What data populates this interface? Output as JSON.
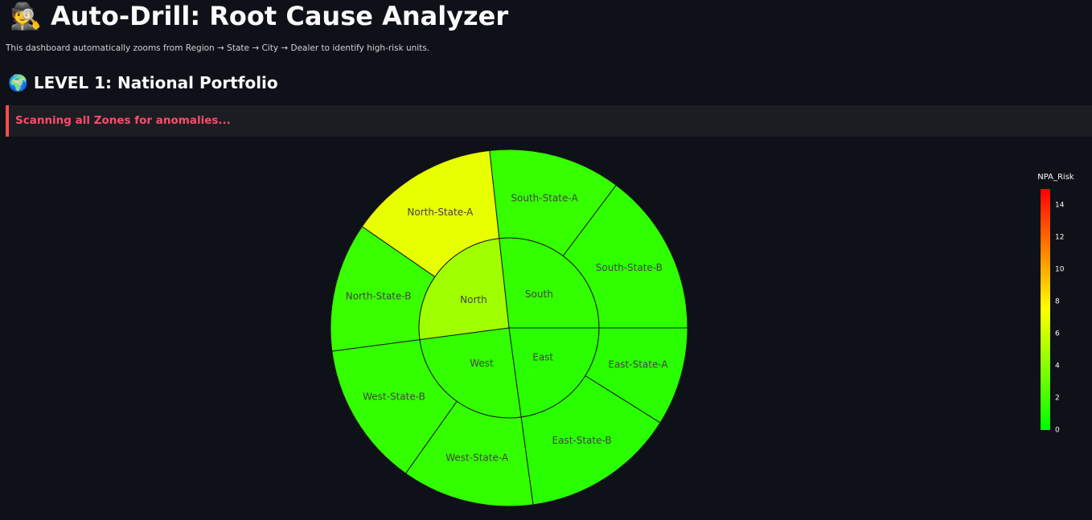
{
  "header": {
    "title": "🕵️ Auto-Drill: Root Cause Analyzer",
    "subtitle": "This dashboard automatically zooms from Region → State → City → Dealer to identify high-risk units."
  },
  "section": {
    "title": "🌍 LEVEL 1: National Portfolio",
    "alert": "Scanning all Zones for anomalies..."
  },
  "chart_data": {
    "type": "sunburst",
    "labels": [
      "South",
      "North",
      "West",
      "East",
      "South-State-B",
      "South-State-A",
      "North-State-A",
      "North-State-B",
      "West-State-B",
      "West-State-A",
      "East-State-B",
      "East-State-A"
    ],
    "parents": [
      null,
      null,
      null,
      null,
      "South",
      "South",
      "North",
      "North",
      "West",
      "West",
      "East",
      "East"
    ],
    "values": [
      96,
      91,
      90,
      82,
      53,
      43,
      49,
      42,
      47,
      43,
      50,
      32
    ],
    "risk": [
      1.5,
      4.7,
      1.5,
      1.2,
      1.4,
      1.6,
      6.8,
      1.7,
      1.5,
      1.5,
      1.2,
      1.2
    ],
    "colorscale": [
      "#00ff00",
      "#ffff00",
      "#ff0000"
    ],
    "colorbar_title": "NPA_Risk",
    "colorbar_lim": [
      0,
      15
    ],
    "colorbar_ticks": [
      0,
      2,
      4,
      6,
      8,
      10,
      12,
      14
    ]
  }
}
